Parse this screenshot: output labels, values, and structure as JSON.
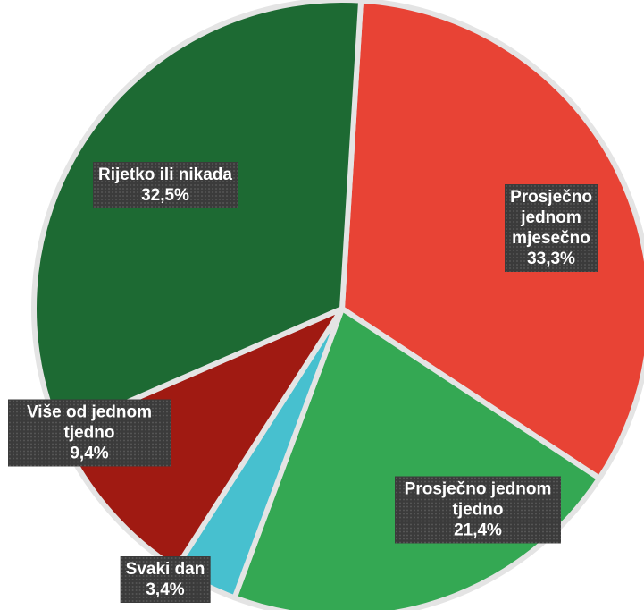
{
  "chart_data": {
    "type": "pie",
    "categories": [
      "Prosječno jednom mjesečno",
      "Prosječno jednom tjedno",
      "Svaki dan",
      "Više od jednom tjedno",
      "Rijetko ili nikada"
    ],
    "values": [
      33.3,
      21.4,
      3.4,
      9.4,
      32.5
    ],
    "value_labels": [
      "33,3%",
      "21,4%",
      "3,4%",
      "9,4%",
      "32,5%"
    ],
    "colors": [
      "#e84335",
      "#34a853",
      "#47c0cf",
      "#a01a12",
      "#1d6a33"
    ]
  }
}
